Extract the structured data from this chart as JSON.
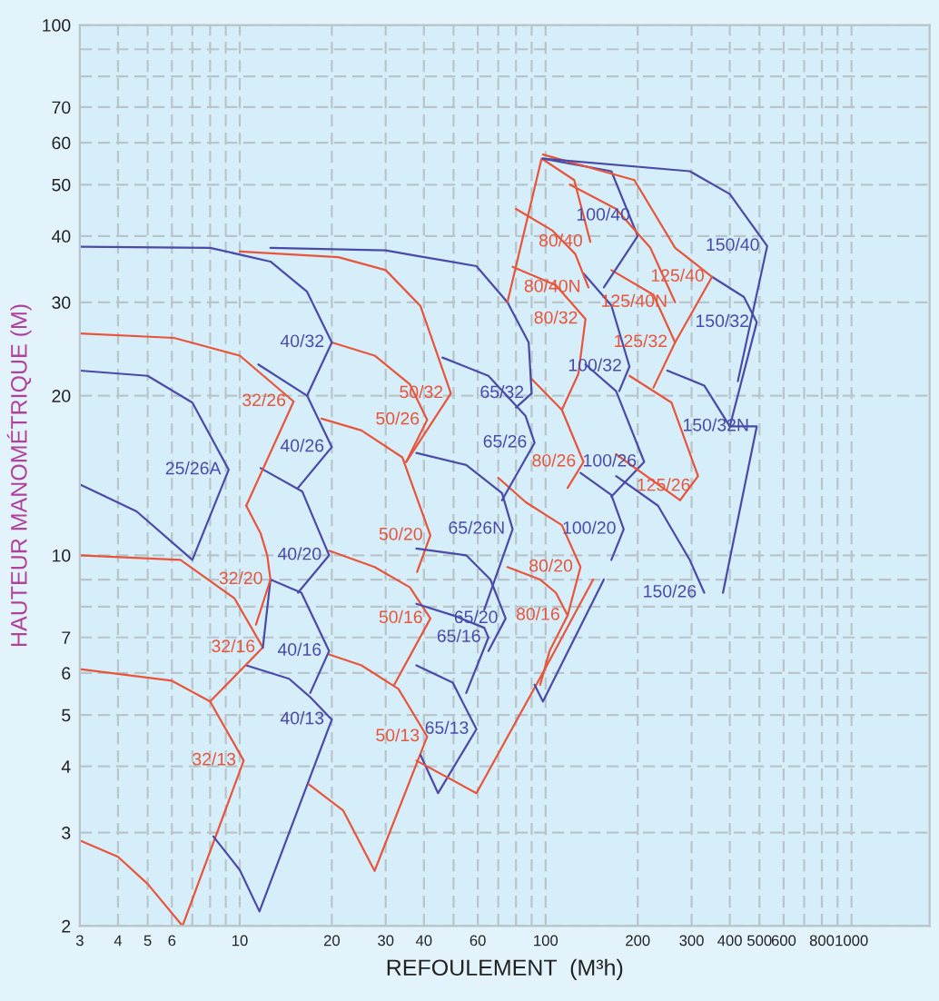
{
  "chart_data": {
    "type": "line",
    "xlabel": "REFOULEMENT  (M³h)",
    "ylabel": "HAUTEUR MANOMÉTRIQUE (M)",
    "log": "xy",
    "grid": true,
    "xlim": [
      3,
      1800
    ],
    "ylim": [
      2,
      100
    ],
    "xticks": [
      3,
      4,
      5,
      6,
      {
        "value": 7,
        "label": null
      },
      {
        "value": 8,
        "label": null
      },
      {
        "value": 9,
        "label": null
      },
      10,
      20,
      30,
      40,
      {
        "value": 50,
        "label": null
      },
      60,
      {
        "value": 70,
        "label": null
      },
      {
        "value": 80,
        "label": null
      },
      {
        "value": 90,
        "label": null
      },
      100,
      200,
      300,
      400,
      500,
      600,
      {
        "value": 700,
        "label": null
      },
      800,
      {
        "value": 900,
        "label": null
      },
      1000
    ],
    "yticks": [
      2,
      3,
      4,
      5,
      6,
      7,
      {
        "value": 8,
        "label": null
      },
      {
        "value": 9,
        "label": null
      },
      10,
      20,
      30,
      40,
      50,
      60,
      70,
      {
        "value": 80,
        "label": null
      },
      {
        "value": 90,
        "label": null
      },
      100
    ],
    "series": [
      {
        "name": "32/13",
        "color": "#e8553a",
        "x": [
          3,
          6,
          8,
          10.3,
          6.5,
          5,
          4,
          3
        ],
        "values": [
          6.1,
          5.8,
          5.3,
          4.1,
          2.0,
          2.4,
          2.7,
          2.9
        ]
      },
      {
        "name": "40/13",
        "color": "#4a4aa8",
        "x": [
          10.5,
          14.5,
          17,
          20,
          11.6,
          10,
          8.2
        ],
        "values": [
          6.2,
          5.85,
          5.4,
          4.9,
          2.13,
          2.55,
          2.95
        ]
      },
      {
        "name": "50/13",
        "color": "#e8553a",
        "x": [
          19.6,
          25,
          33,
          41,
          27.6,
          21.8,
          16.8
        ],
        "values": [
          6.5,
          6.2,
          5.6,
          4.55,
          2.54,
          3.3,
          3.7
        ]
      },
      {
        "name": "65/13",
        "color": "#4a4aa8",
        "x": [
          37.8,
          49.7,
          59.4,
          44.5,
          39
        ],
        "values": [
          6.2,
          5.75,
          4.7,
          3.56,
          4.2
        ]
      },
      {
        "name": "32/16",
        "color": "#e8553a",
        "x": [
          3,
          6.4,
          9.6,
          11.9,
          8
        ],
        "values": [
          10,
          9.8,
          8.3,
          6.7,
          5.3
        ]
      },
      {
        "name": "40/16",
        "color": "#4a4aa8",
        "x": [
          11.9,
          12.6,
          15.9,
          19.6,
          17
        ],
        "values": [
          6.7,
          9.0,
          8.5,
          6.6,
          5.5
        ]
      },
      {
        "name": "50/16",
        "color": "#e8553a",
        "x": [
          19.6,
          27.6,
          36,
          42,
          32
        ],
        "values": [
          10.2,
          9.5,
          8.7,
          7.6,
          5.7
        ]
      },
      {
        "name": "65/16",
        "color": "#4a4aa8",
        "x": [
          37.8,
          50,
          63,
          65,
          55
        ],
        "values": [
          8.1,
          7.7,
          7.3,
          7.0,
          5.5
        ]
      },
      {
        "name": "80/16",
        "color": "#e8553a",
        "x": [
          75,
          96,
          108,
          118,
          103,
          96
        ],
        "values": [
          9.5,
          9.0,
          8.5,
          7.7,
          6.6,
          5.7
        ]
      },
      {
        "name": "32/20",
        "color": "#e8553a",
        "x": [
          10.5,
          11.7,
          12.3,
          12.6,
          11.3
        ],
        "values": [
          12.4,
          11,
          10,
          9,
          7.4
        ]
      },
      {
        "name": "40/20",
        "color": "#4a4aa8",
        "x": [
          11.7,
          16,
          19.6,
          15.5
        ],
        "values": [
          14.6,
          13.2,
          10,
          8.5
        ]
      },
      {
        "name": "50/20",
        "color": "#e8553a",
        "x": [
          18.5,
          25,
          34,
          42,
          38
        ],
        "values": [
          18.1,
          17.2,
          15.3,
          10.9,
          9.3
        ]
      },
      {
        "name": "65/20",
        "color": "#4a4aa8",
        "x": [
          37.8,
          55,
          66,
          74,
          65
        ],
        "values": [
          10.3,
          10,
          9,
          7.6,
          6.6
        ]
      },
      {
        "name": "80/20",
        "color": "#e8553a",
        "x": [
          70,
          86,
          113,
          130,
          118
        ],
        "values": [
          14,
          12.6,
          11.4,
          9.5,
          7.7
        ]
      },
      {
        "name": "100/20",
        "color": "#4a4aa8",
        "x": [
          130,
          164,
          180,
          164
        ],
        "values": [
          14.3,
          13,
          11.2,
          9.8
        ]
      },
      {
        "name": "25/26A",
        "color": "#4a4aa8",
        "x": [
          3,
          5,
          7,
          9.2,
          7,
          4.6,
          3
        ],
        "values": [
          22.3,
          21.8,
          19.4,
          14.5,
          9.8,
          12.1,
          13.6
        ]
      },
      {
        "name": "32/26",
        "color": "#e8553a",
        "x": [
          3,
          6.1,
          10,
          15,
          10.5
        ],
        "values": [
          26.2,
          25.7,
          23.8,
          19.5,
          12.4
        ]
      },
      {
        "name": "40/26",
        "color": "#4a4aa8",
        "x": [
          11.5,
          16.6,
          20,
          15.5
        ],
        "values": [
          22.9,
          20,
          16,
          13.4
        ]
      },
      {
        "name": "50/26",
        "color": "#e8553a",
        "x": [
          20,
          27.6,
          36,
          41,
          35
        ],
        "values": [
          25.2,
          23.8,
          21,
          18,
          15
        ]
      },
      {
        "name": "65/26N",
        "color": "#4a4aa8",
        "x": [
          37.8,
          55,
          72,
          78,
          63
        ],
        "values": [
          15.6,
          14.8,
          13.1,
          11.2,
          7.9
        ]
      },
      {
        "name": "65/26",
        "color": "#4a4aa8",
        "x": [
          46,
          65,
          86,
          92,
          72
        ],
        "values": [
          23.6,
          21.8,
          18.3,
          16.3,
          12.7
        ]
      },
      {
        "name": "80/26",
        "color": "#e8553a",
        "x": [
          90,
          113,
          133,
          118
        ],
        "values": [
          21.5,
          18.8,
          15,
          13.4
        ]
      },
      {
        "name": "100/26",
        "color": "#4a4aa8",
        "x": [
          135,
          170,
          210,
          164
        ],
        "values": [
          22.9,
          20.4,
          15,
          12.9
        ]
      },
      {
        "name": "125/26",
        "color": "#e8553a",
        "x": [
          188,
          258,
          315,
          275,
          170
        ],
        "values": [
          21.8,
          19.4,
          14.1,
          12.7,
          15.5
        ]
      },
      {
        "name": "150/26",
        "color": "#4a4aa8",
        "x": [
          170,
          233,
          296,
          330
        ],
        "values": [
          14.1,
          12.4,
          9.8,
          8.5
        ]
      },
      {
        "name": "40/32",
        "color": "#4a4aa8",
        "x": [
          3,
          8,
          12.6,
          16.6,
          20,
          16.6
        ],
        "values": [
          38.2,
          38,
          35.8,
          31.4,
          25.2,
          20
        ]
      },
      {
        "name": "50/32",
        "color": "#e8553a",
        "x": [
          10,
          21,
          30,
          39,
          49,
          35
        ],
        "values": [
          37.4,
          36.5,
          34.5,
          29.5,
          20.2,
          15
        ]
      },
      {
        "name": "65/32",
        "color": "#4a4aa8",
        "x": [
          12.6,
          30,
          37.8,
          59.4,
          75,
          88,
          90,
          80
        ],
        "values": [
          38,
          37.6,
          36.7,
          35.1,
          30,
          25.2,
          20.2,
          19
        ]
      },
      {
        "name": "80/32",
        "color": "#e8553a",
        "x": [
          78,
          108,
          135,
          128,
          113
        ],
        "values": [
          35,
          32.3,
          27.9,
          22,
          18.8
        ]
      },
      {
        "name": "100/32",
        "color": "#4a4aa8",
        "x": [
          133,
          164,
          188,
          174
        ],
        "values": [
          34,
          29.6,
          22.7,
          20.4
        ]
      },
      {
        "name": "125/32",
        "color": "#e8553a",
        "x": [
          164,
          225,
          265,
          225
        ],
        "values": [
          34.5,
          31,
          25.2,
          20.7
        ]
      },
      {
        "name": "150/32",
        "color": "#4a4aa8",
        "x": [
          350,
          445,
          490,
          400
        ],
        "values": [
          33.5,
          30.7,
          27.5,
          17.5
        ]
      },
      {
        "name": "150/32N",
        "color": "#4a4aa8",
        "x": [
          250,
          330,
          400,
          490,
          380
        ],
        "values": [
          22.3,
          20.9,
          17.5,
          17.5,
          8.5
        ]
      },
      {
        "name": "80/40N",
        "color": "#e8553a",
        "x": [
          80,
          105,
          125,
          138
        ],
        "values": [
          45,
          41,
          37,
          32
        ]
      },
      {
        "name": "80/40",
        "color": "#e8553a",
        "x": [
          75,
          97,
          124,
          140
        ],
        "values": [
          30,
          56,
          51,
          39
        ]
      },
      {
        "name": "100/40",
        "color": "#4a4aa8",
        "x": [
          98,
          164,
          200,
          155
        ],
        "values": [
          56,
          53,
          40,
          32
        ]
      },
      {
        "name": "125/40N",
        "color": "#e8553a",
        "x": [
          120,
          170,
          220,
          265
        ],
        "values": [
          50,
          45,
          38,
          30
        ]
      },
      {
        "name": "125/40",
        "color": "#e8553a",
        "x": [
          98,
          195,
          265,
          350,
          265
        ],
        "values": [
          57,
          51,
          38,
          33.5,
          25.2
        ]
      },
      {
        "name": "150/40",
        "color": "#4a4aa8",
        "x": [
          98,
          296,
          400,
          530,
          425
        ],
        "values": [
          56,
          53,
          48,
          38.3,
          21.3
        ]
      },
      {
        "color": "#e8553a",
        "x": [
          37.8,
          59.4,
          101,
          143
        ],
        "values": [
          4.1,
          3.56,
          6.2,
          9.0
        ]
      },
      {
        "color": "#4a4aa8",
        "x": [
          92,
          98,
          155
        ],
        "values": [
          5.7,
          5.3,
          9.0
        ]
      }
    ]
  }
}
